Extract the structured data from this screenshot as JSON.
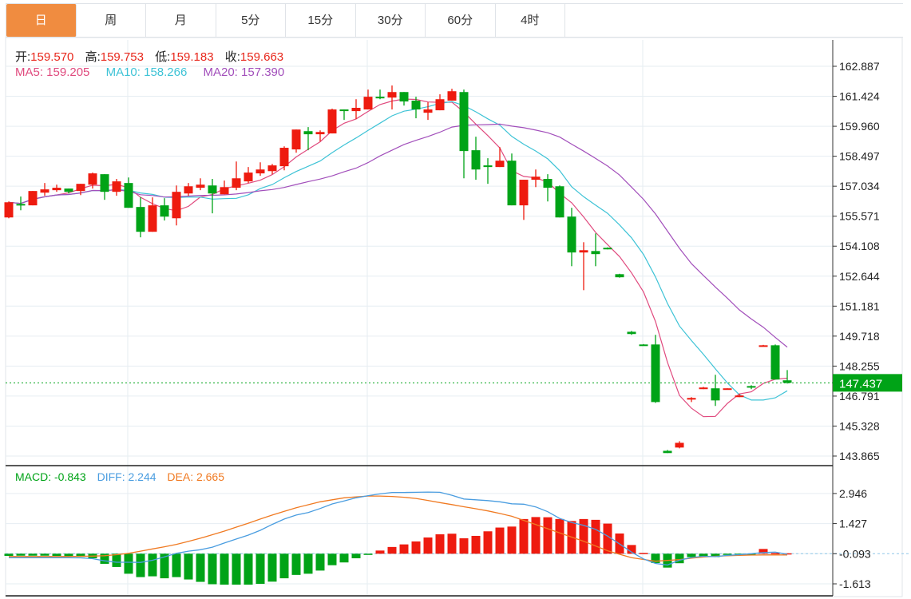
{
  "tabs": [
    "日",
    "周",
    "月",
    "5分",
    "15分",
    "30分",
    "60分",
    "4时"
  ],
  "active_tab": 0,
  "ohlc_legend": {
    "open_label": "开:",
    "open": "159.570",
    "high_label": "高:",
    "high": "159.753",
    "low_label": "低:",
    "low": "159.183",
    "close_label": "收:",
    "close": "159.663"
  },
  "ma_legend": {
    "ma5": "MA5: 159.205",
    "ma10": "MA10: 158.266",
    "ma20": "MA20: 157.390"
  },
  "macd_legend": {
    "macd": "MACD: -0.843",
    "diff": "DIFF: 2.244",
    "dea": "DEA: 2.665"
  },
  "colors": {
    "up": "#ee1b0f",
    "down": "#00a317",
    "ma5": "#e04a7e",
    "ma10": "#3ec3d6",
    "ma20": "#a24fbb",
    "diff": "#4a9de0",
    "dea": "#f07a22",
    "accent": "#f08c40",
    "last_price_bg": "#00a317"
  },
  "chart_data": [
    {
      "type": "candlestick",
      "title": "",
      "candle_fields": [
        "open",
        "close",
        "high",
        "low"
      ],
      "candles": [
        [
          155.51,
          156.25,
          156.29,
          155.47
        ],
        [
          156.17,
          156.14,
          156.53,
          155.86
        ],
        [
          156.1,
          156.8,
          156.8,
          156.1
        ],
        [
          156.72,
          156.88,
          157.19,
          156.57
        ],
        [
          156.84,
          156.96,
          157.11,
          156.76
        ],
        [
          156.92,
          156.76,
          156.92,
          156.68
        ],
        [
          156.8,
          157.15,
          157.15,
          156.6
        ],
        [
          157.11,
          157.66,
          157.7,
          156.92
        ],
        [
          157.62,
          156.76,
          157.62,
          156.37
        ],
        [
          156.76,
          157.27,
          157.39,
          156.57
        ],
        [
          157.19,
          155.98,
          157.46,
          155.98
        ],
        [
          156.02,
          154.81,
          156.49,
          154.54
        ],
        [
          154.81,
          156.1,
          156.49,
          154.81
        ],
        [
          156.1,
          155.55,
          156.45,
          155.36
        ],
        [
          155.47,
          156.76,
          157.07,
          155.12
        ],
        [
          156.68,
          157.03,
          157.19,
          156.57
        ],
        [
          156.96,
          157.11,
          157.42,
          156.84
        ],
        [
          157.07,
          156.68,
          157.39,
          155.71
        ],
        [
          156.64,
          156.99,
          157.31,
          156.64
        ],
        [
          156.96,
          157.42,
          158.24,
          156.84
        ],
        [
          157.27,
          157.7,
          157.97,
          157.19
        ],
        [
          157.66,
          157.85,
          158.2,
          157.54
        ],
        [
          157.77,
          158.05,
          158.12,
          157.62
        ],
        [
          158.01,
          158.91,
          158.98,
          157.81
        ],
        [
          158.83,
          159.8,
          159.8,
          158.67
        ],
        [
          159.72,
          159.57,
          159.92,
          158.79
        ],
        [
          159.57,
          159.68,
          159.76,
          159.22
        ],
        [
          159.61,
          160.78,
          160.82,
          159.61
        ],
        [
          160.78,
          160.7,
          160.78,
          160.27
        ],
        [
          160.7,
          160.86,
          161.28,
          160.31
        ],
        [
          160.78,
          161.4,
          161.75,
          160.78
        ],
        [
          161.4,
          161.36,
          161.75,
          161.28
        ],
        [
          161.36,
          161.63,
          161.95,
          160.78
        ],
        [
          161.63,
          161.17,
          161.63,
          160.97
        ],
        [
          161.21,
          160.78,
          161.4,
          160.35
        ],
        [
          160.62,
          160.78,
          161.13,
          160.27
        ],
        [
          160.74,
          161.28,
          161.52,
          160.74
        ],
        [
          161.21,
          161.67,
          161.79,
          161.21
        ],
        [
          161.63,
          158.75,
          161.75,
          157.42
        ],
        [
          158.79,
          157.85,
          159.45,
          157.35
        ],
        [
          158.05,
          157.97,
          158.4,
          157.15
        ],
        [
          157.97,
          158.28,
          158.94,
          157.97
        ],
        [
          158.28,
          156.1,
          158.63,
          156.1
        ],
        [
          156.1,
          157.35,
          157.35,
          155.39
        ],
        [
          157.35,
          157.5,
          157.85,
          156.99
        ],
        [
          157.39,
          156.96,
          157.62,
          156.29
        ],
        [
          157.03,
          155.51,
          157.07,
          155.51
        ],
        [
          155.55,
          153.8,
          155.98,
          153.13
        ],
        [
          153.8,
          153.91,
          154.3,
          151.96
        ],
        [
          153.87,
          153.72,
          154.73,
          153.13
        ],
        [
          154.03,
          153.97,
          154.05,
          153.95
        ],
        [
          152.74,
          152.59,
          152.76,
          152.57
        ],
        [
          149.93,
          149.82,
          149.97,
          149.78
        ],
        [
          149.31,
          149.27,
          149.33,
          149.25
        ],
        [
          149.31,
          146.5,
          149.78,
          146.46
        ],
        [
          144.12,
          144.01,
          144.16,
          144.01
        ],
        [
          144.28,
          144.51,
          144.59,
          144.24
        ],
        [
          146.62,
          146.7,
          146.74,
          146.5
        ],
        [
          147.13,
          147.21,
          147.24,
          147.13
        ],
        [
          147.17,
          146.58,
          147.83,
          146.31
        ],
        [
          147.13,
          147.17,
          147.17,
          147.13
        ],
        [
          146.74,
          146.82,
          146.9,
          146.74
        ],
        [
          147.28,
          147.21,
          147.32,
          147.13
        ],
        [
          149.23,
          149.27,
          149.29,
          149.21
        ],
        [
          149.27,
          147.6,
          149.31,
          147.6
        ],
        [
          147.56,
          147.437,
          148.06,
          147.4
        ]
      ],
      "moving_averages": [
        "MA5",
        "MA10",
        "MA20"
      ],
      "y_ticks": [
        "162.887",
        "161.424",
        "159.960",
        "158.497",
        "157.034",
        "155.571",
        "154.108",
        "152.644",
        "151.181",
        "149.718",
        "148.255",
        "146.791",
        "145.328",
        "143.865"
      ],
      "ylim": [
        143.865,
        162.887
      ],
      "last_price": "147.437",
      "grid": true
    },
    {
      "type": "bar+line",
      "title": "MACD",
      "histogram": [
        -0.11,
        -0.1,
        -0.1,
        -0.1,
        -0.11,
        -0.13,
        -0.16,
        -0.23,
        -0.51,
        -0.67,
        -1.01,
        -1.18,
        -1.14,
        -1.24,
        -1.18,
        -1.3,
        -1.42,
        -1.54,
        -1.56,
        -1.56,
        -1.56,
        -1.52,
        -1.41,
        -1.24,
        -1.07,
        -1.01,
        -0.85,
        -0.58,
        -0.44,
        -0.23,
        -0.02,
        0.16,
        0.34,
        0.47,
        0.62,
        0.82,
        0.98,
        1.01,
        0.78,
        0.9,
        1.13,
        1.32,
        1.37,
        1.75,
        1.85,
        1.84,
        1.75,
        1.65,
        1.75,
        1.71,
        1.52,
        1.02,
        0.44,
        0.04,
        -0.47,
        -0.7,
        -0.48,
        -0.17,
        -0.13,
        -0.17,
        -0.05,
        -0.04,
        -0.01,
        0.24,
        0.03,
        0.02
      ],
      "diff": [
        -0.2,
        -0.2,
        -0.2,
        -0.2,
        -0.2,
        -0.2,
        -0.21,
        -0.25,
        -0.36,
        -0.43,
        -0.43,
        -0.44,
        -0.33,
        -0.16,
        0.02,
        0.13,
        0.2,
        0.33,
        0.54,
        0.74,
        0.94,
        1.18,
        1.48,
        1.75,
        1.95,
        2.08,
        2.28,
        2.51,
        2.66,
        2.82,
        2.93,
        3.02,
        3.09,
        3.09,
        3.1,
        3.11,
        3.1,
        2.95,
        2.76,
        2.72,
        2.68,
        2.62,
        2.52,
        2.5,
        2.36,
        2.12,
        1.78,
        1.57,
        1.43,
        1.23,
        0.89,
        0.49,
        0.08,
        -0.26,
        -0.49,
        -0.57,
        -0.33,
        -0.19,
        -0.13,
        -0.15,
        -0.08,
        -0.05,
        0.0,
        0.06,
        0.08,
        -0.03
      ],
      "dea": [
        -0.14,
        -0.14,
        -0.14,
        -0.14,
        -0.14,
        -0.14,
        -0.13,
        -0.12,
        -0.1,
        -0.05,
        0.02,
        0.13,
        0.24,
        0.35,
        0.47,
        0.62,
        0.78,
        0.96,
        1.14,
        1.34,
        1.54,
        1.75,
        1.95,
        2.14,
        2.32,
        2.47,
        2.62,
        2.72,
        2.82,
        2.87,
        2.91,
        2.91,
        2.89,
        2.85,
        2.79,
        2.69,
        2.58,
        2.48,
        2.37,
        2.27,
        2.16,
        2.03,
        1.89,
        1.68,
        1.47,
        1.26,
        1.05,
        0.84,
        0.63,
        0.39,
        0.15,
        -0.03,
        -0.2,
        -0.29,
        -0.38,
        -0.34,
        -0.3,
        -0.22,
        -0.17,
        -0.13,
        -0.1,
        -0.08,
        -0.07,
        -0.06,
        -0.06,
        -0.06
      ],
      "y_ticks": [
        "2.946",
        "1.427",
        "-0.093",
        "-1.613"
      ],
      "ylim": [
        -1.85,
        3.4
      ],
      "legend": [
        "MACD",
        "DIFF",
        "DEA"
      ]
    }
  ]
}
